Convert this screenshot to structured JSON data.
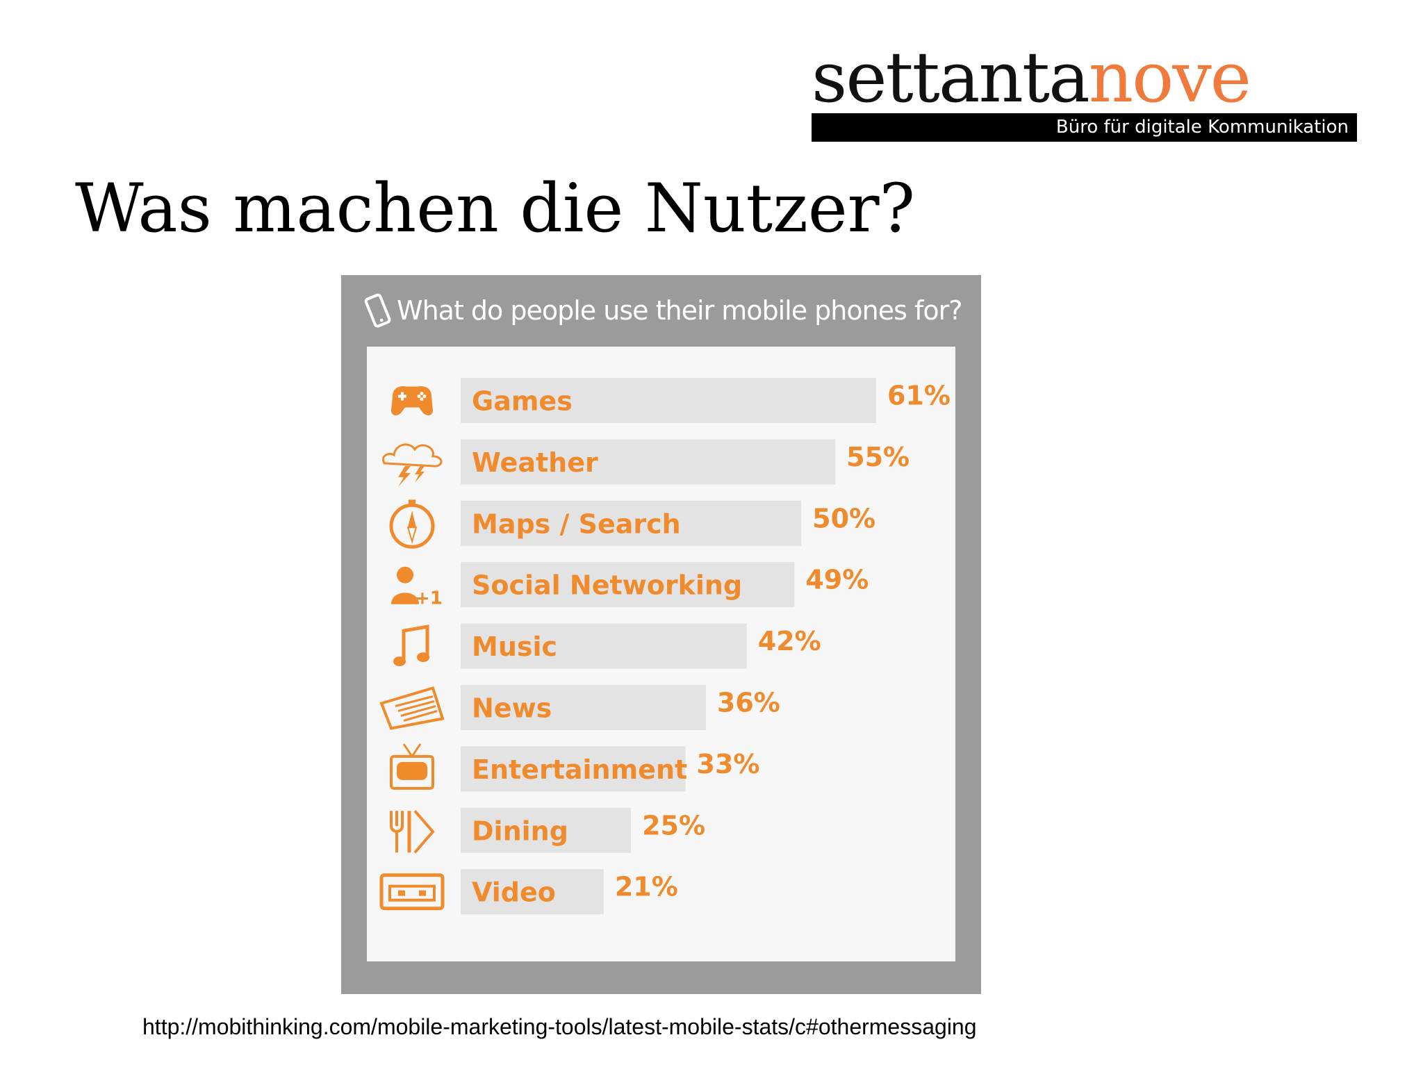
{
  "logo": {
    "word_main": "settanta",
    "word_accent": "nove",
    "tagline": "Büro für digitale Kommunikation",
    "accent_color": "#f0793c"
  },
  "slide": {
    "title": "Was machen die Nutzer?",
    "source": "http://mobithinking.com/mobile-marketing-tools/latest-mobile-stats/c#othermessaging"
  },
  "colors": {
    "bar": "#e3e3e3",
    "label": "#ef8b2c",
    "panel": "#9b9b9b"
  },
  "chart_data": {
    "type": "bar",
    "orientation": "horizontal",
    "title": "What do people use their mobile phones for?",
    "categories": [
      "Games",
      "Weather",
      "Maps / Search",
      "Social Networking",
      "Music",
      "News",
      "Entertainment",
      "Dining",
      "Video"
    ],
    "values": [
      61,
      55,
      50,
      49,
      42,
      36,
      33,
      25,
      21
    ],
    "value_labels": [
      "61%",
      "55%",
      "50%",
      "49%",
      "42%",
      "36%",
      "33%",
      "25%",
      "21%"
    ],
    "icons": [
      "gamepad-icon",
      "weather-storm-icon",
      "compass-icon",
      "user-plus-one-icon",
      "music-note-icon",
      "newspaper-icon",
      "tv-icon",
      "dining-icon",
      "video-cassette-icon"
    ],
    "unit": "%",
    "grid": false,
    "legend": "none"
  }
}
